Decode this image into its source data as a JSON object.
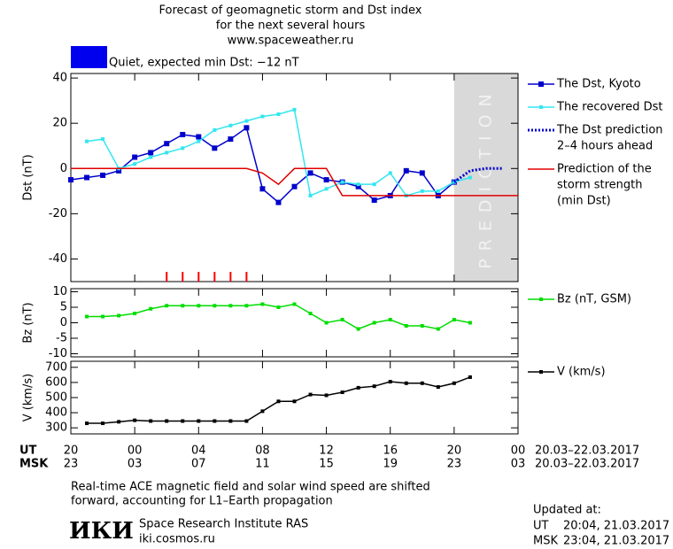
{
  "header": {
    "title": [
      "Forecast of geomagnetic storm and Dst index",
      "for the next several hours",
      "www.spaceweather.ru"
    ],
    "status": "Quiet, expected min Dst: −12 nT",
    "status_color": "#0000ee"
  },
  "chart_data": [
    {
      "type": "line",
      "ylabel": "Dst (nT)",
      "xlim": [
        0,
        28
      ],
      "xticks": [
        0,
        4,
        8,
        12,
        16,
        20,
        24,
        28
      ],
      "ylim": [
        -50,
        42
      ],
      "yticks": [
        -40,
        -20,
        0,
        20,
        40
      ],
      "prediction_band": {
        "x": [
          24,
          28
        ],
        "label": "PREDICTION",
        "color": "#d9d9d9"
      },
      "event_marks": {
        "x": [
          6,
          7,
          8,
          9,
          10,
          11
        ],
        "color": "#ff0000"
      },
      "series": [
        {
          "name": [
            "The Dst, Kyoto"
          ],
          "color": "#0000cc",
          "marker": "square",
          "x": [
            0,
            1,
            2,
            3,
            4,
            5,
            6,
            7,
            8,
            9,
            10,
            11,
            12,
            13,
            14,
            15,
            16,
            17,
            18,
            19,
            20,
            21,
            22,
            23,
            24
          ],
          "values": [
            -5,
            -4,
            -3,
            -1,
            5,
            7,
            11,
            15,
            14,
            9,
            13,
            18,
            -9,
            -15,
            -8,
            -2,
            -5,
            -6,
            -8,
            -14,
            -12,
            -1,
            -2,
            -12,
            -6
          ]
        },
        {
          "name": [
            "The recovered Dst"
          ],
          "color": "#33e6f0",
          "marker": "small-square",
          "x": [
            1,
            2,
            3,
            4,
            5,
            6,
            7,
            8,
            9,
            10,
            11,
            12,
            13,
            14,
            15,
            16,
            17,
            18,
            19,
            20,
            21,
            22,
            23,
            24,
            25
          ],
          "values": [
            12,
            13,
            0,
            2,
            5,
            7,
            9,
            12,
            17,
            19,
            21,
            23,
            24,
            26,
            -12,
            -9,
            -6,
            -7,
            -7,
            -2,
            -12,
            -10,
            -10,
            -6,
            -4
          ]
        },
        {
          "name": [
            "The Dst prediction",
            "2–4 hours ahead"
          ],
          "color": "#0000cc",
          "dash": "dotted",
          "x": [
            24,
            25,
            26,
            27
          ],
          "values": [
            -6,
            -1,
            0,
            0
          ]
        },
        {
          "name": [
            "Prediction of the",
            "storm strength",
            "(min Dst)"
          ],
          "color": "#e00000",
          "x": [
            0,
            11,
            12,
            13,
            14,
            16,
            17,
            28
          ],
          "values": [
            0,
            0,
            -2,
            -7,
            0,
            0,
            -12,
            -12
          ]
        }
      ]
    },
    {
      "type": "line",
      "ylabel": "Bz (nT)",
      "xlim": [
        0,
        28
      ],
      "xticks": [
        0,
        4,
        8,
        12,
        16,
        20,
        24,
        28
      ],
      "ylim": [
        -11,
        11
      ],
      "yticks": [
        -10,
        -5,
        0,
        5,
        10
      ],
      "series": [
        {
          "name": [
            "Bz (nT, GSM)"
          ],
          "color": "#00dd00",
          "marker": "small-square",
          "x": [
            1,
            2,
            3,
            4,
            5,
            6,
            7,
            8,
            9,
            10,
            11,
            12,
            13,
            14,
            15,
            16,
            17,
            18,
            19,
            20,
            21,
            22,
            23,
            24,
            25
          ],
          "values": [
            2,
            2,
            2.3,
            3,
            4.5,
            5.5,
            5.5,
            5.5,
            5.5,
            5.5,
            5.5,
            6,
            5,
            6,
            3,
            0,
            1,
            -2,
            0,
            1,
            -1,
            -1,
            -2,
            1,
            0
          ]
        }
      ]
    },
    {
      "type": "line",
      "ylabel": "V (km/s)",
      "xlim": [
        0,
        28
      ],
      "xticks": [
        {
          "value": 0,
          "label": "20"
        },
        {
          "value": 4,
          "label": "00"
        },
        {
          "value": 8,
          "label": "04"
        },
        {
          "value": 12,
          "label": "08"
        },
        {
          "value": 16,
          "label": "12"
        },
        {
          "value": 20,
          "label": "16"
        },
        {
          "value": 24,
          "label": "20"
        },
        {
          "value": 28,
          "label": "00"
        }
      ],
      "xticks_msk": [
        "23",
        "03",
        "07",
        "11",
        "15",
        "19",
        "23",
        "03"
      ],
      "x_row_labels": [
        "UT",
        "MSK"
      ],
      "date_range": [
        "20.03–22.03.2017",
        "20.03–22.03.2017"
      ],
      "ylim": [
        260,
        740
      ],
      "yticks": [
        300,
        400,
        500,
        600,
        700
      ],
      "series": [
        {
          "name": [
            "V (km/s)"
          ],
          "color": "#000000",
          "marker": "small-square",
          "x": [
            1,
            2,
            3,
            4,
            5,
            6,
            7,
            8,
            9,
            10,
            11,
            12,
            13,
            14,
            15,
            16,
            17,
            18,
            19,
            20,
            21,
            22,
            23,
            24,
            25
          ],
          "values": [
            330,
            330,
            340,
            350,
            345,
            345,
            345,
            345,
            345,
            345,
            345,
            410,
            475,
            475,
            520,
            515,
            535,
            565,
            575,
            605,
            595,
            595,
            570,
            595,
            635
          ]
        }
      ]
    }
  ],
  "footer": {
    "note": [
      "Real-time ACE magnetic field and solar wind speed are shifted",
      "forward, accounting for L1–Earth propagation"
    ],
    "logo": "ИКИ",
    "institute": "Space Research Institute RAS",
    "site": "iki.cosmos.ru",
    "updated": "Updated at:",
    "ut_label": "UT",
    "ut_time": "20:04, 21.03.2017",
    "msk_label": "MSK",
    "msk_time": "23:04, 21.03.2017"
  }
}
